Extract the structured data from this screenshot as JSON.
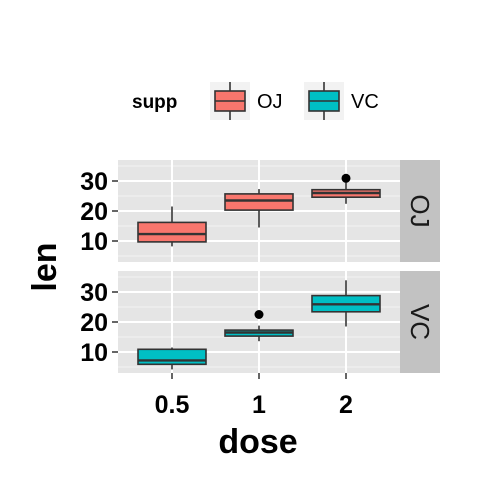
{
  "chart_data": {
    "type": "boxplot",
    "xlabel": "dose",
    "ylabel": "len",
    "categories": [
      "0.5",
      "1",
      "2"
    ],
    "y_ticks": [
      "10",
      "20",
      "30"
    ],
    "ylim": [
      3,
      37
    ],
    "legend": {
      "title": "supp",
      "placement": "top",
      "entries": [
        {
          "label": "OJ",
          "color": "#F8766D"
        },
        {
          "label": "VC",
          "color": "#00BFC4"
        }
      ]
    },
    "panels": [
      {
        "strip": "OJ",
        "color": "#F8766D",
        "boxes": [
          {
            "x": "0.5",
            "min": 8.2,
            "q1": 9.7,
            "median": 12.3,
            "q3": 16.2,
            "max": 21.5,
            "outliers": []
          },
          {
            "x": "1",
            "min": 14.5,
            "q1": 20.3,
            "median": 23.5,
            "q3": 25.7,
            "max": 27.3,
            "outliers": []
          },
          {
            "x": "2",
            "min": 22.4,
            "q1": 24.6,
            "median": 26.0,
            "q3": 27.1,
            "max": 30.9,
            "outliers": [
              30.9
            ]
          }
        ]
      },
      {
        "strip": "VC",
        "color": "#00BFC4",
        "boxes": [
          {
            "x": "0.5",
            "min": 4.2,
            "q1": 5.9,
            "median": 7.2,
            "q3": 10.9,
            "max": 11.5,
            "outliers": []
          },
          {
            "x": "1",
            "min": 13.6,
            "q1": 15.3,
            "median": 16.5,
            "q3": 17.3,
            "max": 18.8,
            "outliers": [
              22.5
            ]
          },
          {
            "x": "2",
            "min": 18.5,
            "q1": 23.4,
            "median": 25.9,
            "q3": 28.8,
            "max": 33.9,
            "outliers": []
          }
        ]
      }
    ],
    "grid": true,
    "panel_background": "#E5E5E5",
    "strip_background": "#C2C2C2"
  }
}
